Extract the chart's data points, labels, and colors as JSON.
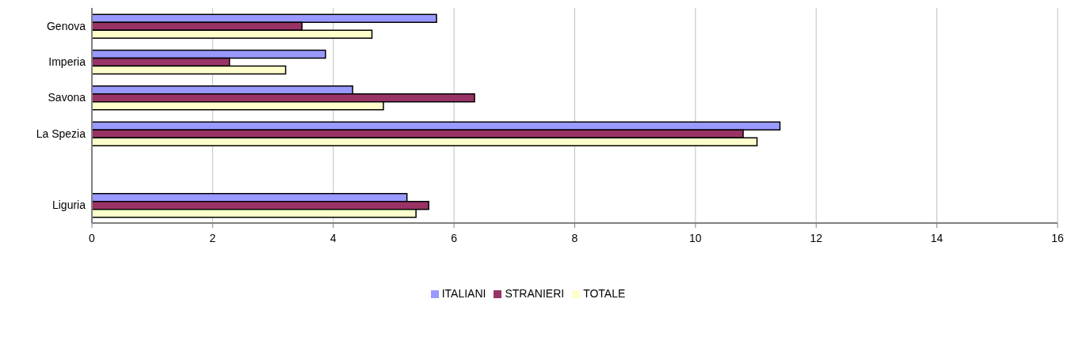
{
  "chart_data": {
    "type": "bar",
    "orientation": "horizontal",
    "categories": [
      "Genova",
      "Imperia",
      "Savona",
      "La Spezia",
      null,
      "Liguria"
    ],
    "series": [
      {
        "name": "ITALIANI",
        "color": "#9999ff",
        "values": [
          5.71,
          3.87,
          4.32,
          11.4,
          null,
          5.22
        ]
      },
      {
        "name": "STRANIERI",
        "color": "#993366",
        "values": [
          3.48,
          2.28,
          6.34,
          10.79,
          null,
          5.58
        ]
      },
      {
        "name": "TOTALE",
        "color": "#ffffcc",
        "values": [
          4.64,
          3.21,
          4.83,
          11.02,
          null,
          5.37
        ]
      }
    ],
    "xlim": [
      0,
      16
    ],
    "xticks": [
      0,
      2,
      4,
      6,
      8,
      10,
      12,
      14,
      16
    ],
    "grid": "x",
    "legend": "bottom"
  }
}
